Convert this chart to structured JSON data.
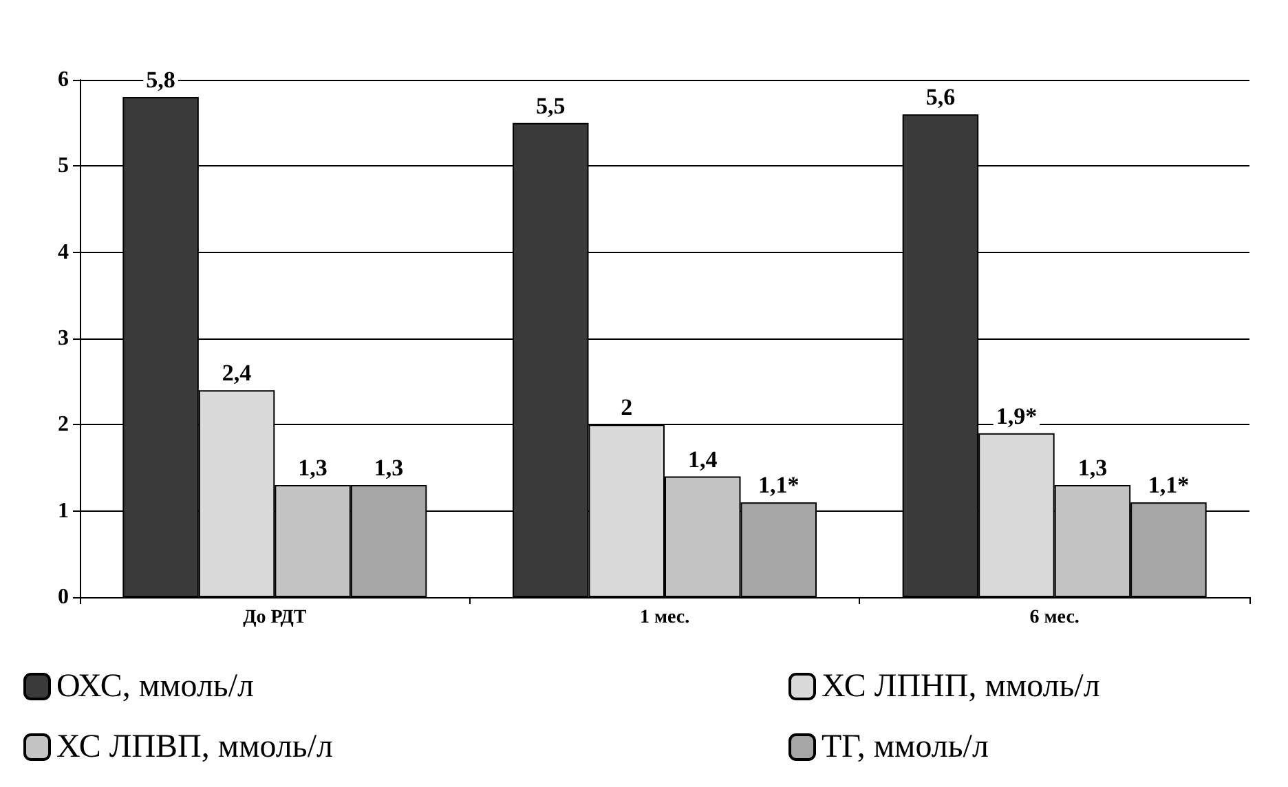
{
  "chart_data": {
    "type": "bar",
    "categories": [
      "До РДТ",
      "1 мес.",
      "6 мес."
    ],
    "series": [
      {
        "name": "ОХС, ммоль/л",
        "color": "#3a3a3a",
        "values": [
          5.8,
          5.5,
          5.6
        ],
        "value_labels": [
          "5,8",
          "5,5",
          "5,6"
        ]
      },
      {
        "name": "ХС ЛПНП, ммоль/л",
        "color": "#dadada",
        "values": [
          2.4,
          2,
          1.9
        ],
        "value_labels": [
          "2,4",
          "2",
          "1,9*"
        ]
      },
      {
        "name": "ХС ЛПВП, ммоль/л",
        "color": "#c4c4c4",
        "values": [
          1.3,
          1.4,
          1.3
        ],
        "value_labels": [
          "1,3",
          "1,4",
          "1,3"
        ]
      },
      {
        "name": "ТГ, ммоль/л",
        "color": "#a6a6a6",
        "values": [
          1.3,
          1.1,
          1.1
        ],
        "value_labels": [
          "1,3",
          "1,1*",
          "1,1*"
        ]
      }
    ],
    "ylim": [
      0,
      6
    ],
    "yticks": [
      0,
      1,
      2,
      3,
      4,
      5,
      6
    ],
    "grid": "y",
    "legend": "bottom"
  }
}
